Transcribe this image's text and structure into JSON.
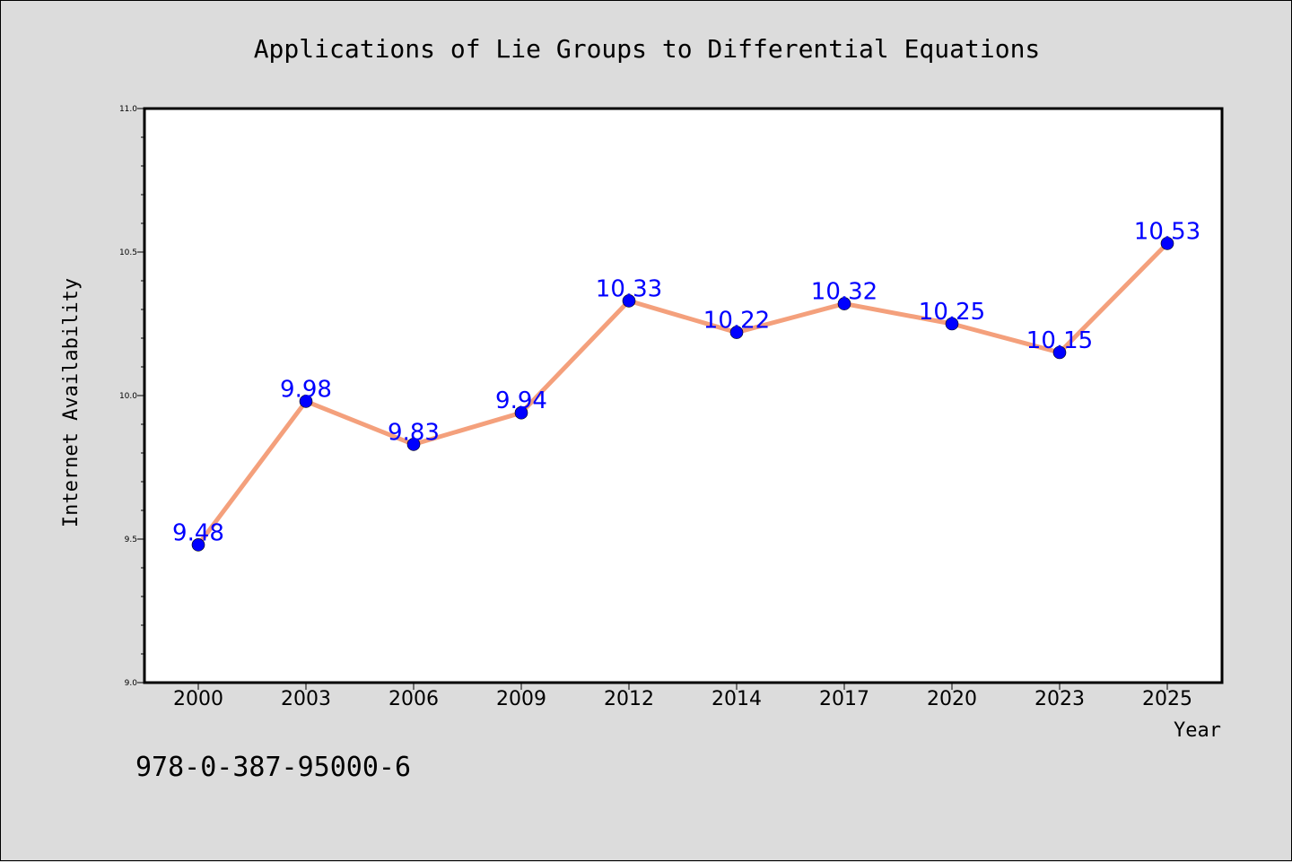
{
  "chart_data": {
    "type": "line",
    "title": "Applications of Lie Groups to Differential Equations",
    "xlabel": "Year",
    "ylabel": "Internet Availability",
    "categories": [
      "2000",
      "2003",
      "2006",
      "2009",
      "2012",
      "2014",
      "2017",
      "2020",
      "2023",
      "2025"
    ],
    "series": [
      {
        "values": [
          9.48,
          9.98,
          9.83,
          9.94,
          10.33,
          10.22,
          10.32,
          10.25,
          10.15,
          10.53
        ],
        "data_labels": [
          "9.48",
          "9.98",
          "9.83",
          "9.94",
          "10.33",
          "10.22",
          "10.32",
          "10.25",
          "10.15",
          "10.53"
        ],
        "line_color": "#f4a07c",
        "marker_color": "#0000ff"
      }
    ],
    "ylim": [
      9.0,
      11.0
    ],
    "yticks": [
      "9.0",
      "9.5",
      "10.0",
      "10.5",
      "11.0"
    ],
    "grid": false,
    "legend": "none"
  },
  "annotation": "978-0-387-95000-6",
  "colors": {
    "background": "#dcdcdc",
    "plot_background": "#ffffff",
    "line": "#f4a07c",
    "marker": "#0000ff",
    "data_label": "#0000ff"
  }
}
